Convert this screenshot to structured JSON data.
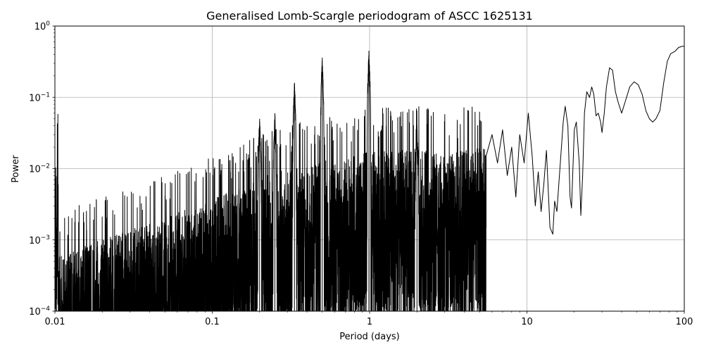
{
  "chart_data": {
    "type": "line",
    "title": "Generalised Lomb-Scargle periodogram of ASCC 1625131",
    "xlabel": "Period (days)",
    "ylabel": "Power",
    "xscale": "log",
    "yscale": "log",
    "xlim": [
      0.01,
      100
    ],
    "ylim": [
      0.0001,
      1
    ],
    "grid": true,
    "line_color": "#000000",
    "x_ticks": [
      {
        "value": 0.01,
        "label": "0.01"
      },
      {
        "value": 0.1,
        "label": "0.1"
      },
      {
        "value": 1,
        "label": "1"
      },
      {
        "value": 10,
        "label": "10"
      },
      {
        "value": 100,
        "label": "100"
      }
    ],
    "y_ticks": [
      {
        "value": 0.0001,
        "base": "10",
        "exp": "−4"
      },
      {
        "value": 0.001,
        "base": "10",
        "exp": "−3"
      },
      {
        "value": 0.01,
        "base": "10",
        "exp": "−2"
      },
      {
        "value": 0.1,
        "base": "10",
        "exp": "−1"
      },
      {
        "value": 1,
        "base": "10",
        "exp": "0"
      }
    ],
    "series": [
      {
        "peaks": [
          {
            "period": 0.2,
            "power": 0.05
          },
          {
            "period": 0.25,
            "power": 0.06
          },
          {
            "period": 0.333,
            "power": 0.16
          },
          {
            "period": 0.5,
            "power": 0.36
          },
          {
            "period": 0.99,
            "power": 0.45
          },
          {
            "period": 2.0,
            "power": 0.04
          }
        ],
        "envelope": [
          [
            0.0105,
            0.0006
          ],
          [
            0.013,
            0.0007
          ],
          [
            0.016,
            0.0009
          ],
          [
            0.02,
            0.001
          ],
          [
            0.025,
            0.0012
          ],
          [
            0.03,
            0.0014
          ],
          [
            0.04,
            0.0017
          ],
          [
            0.05,
            0.002
          ],
          [
            0.06,
            0.0024
          ],
          [
            0.07,
            0.0028
          ],
          [
            0.08,
            0.0031
          ],
          [
            0.09,
            0.0034
          ],
          [
            0.1,
            0.0037
          ],
          [
            0.12,
            0.0045
          ],
          [
            0.14,
            0.005
          ],
          [
            0.16,
            0.006
          ],
          [
            0.18,
            0.0065
          ],
          [
            0.2,
            0.0075
          ],
          [
            0.25,
            0.009
          ],
          [
            0.3,
            0.01
          ],
          [
            0.4,
            0.012
          ],
          [
            0.5,
            0.014
          ],
          [
            0.6,
            0.013
          ],
          [
            0.7,
            0.014
          ],
          [
            0.8,
            0.015
          ],
          [
            0.9,
            0.016
          ],
          [
            1.0,
            0.018
          ],
          [
            1.5,
            0.018
          ],
          [
            2.0,
            0.02
          ],
          [
            3.0,
            0.015
          ],
          [
            4.0,
            0.018
          ],
          [
            5.0,
            0.02
          ]
        ],
        "smooth": [
          [
            5.5,
            0.015
          ],
          [
            6.0,
            0.03
          ],
          [
            6.5,
            0.012
          ],
          [
            7.0,
            0.035
          ],
          [
            7.5,
            0.008
          ],
          [
            8.0,
            0.02
          ],
          [
            8.5,
            0.004
          ],
          [
            9.0,
            0.03
          ],
          [
            9.6,
            0.012
          ],
          [
            10.2,
            0.06
          ],
          [
            10.8,
            0.015
          ],
          [
            11.3,
            0.003
          ],
          [
            11.8,
            0.009
          ],
          [
            12.3,
            0.0025
          ],
          [
            12.8,
            0.006
          ],
          [
            13.3,
            0.018
          ],
          [
            14.0,
            0.0015
          ],
          [
            14.6,
            0.0012
          ],
          [
            15.0,
            0.0035
          ],
          [
            15.5,
            0.0025
          ],
          [
            16.2,
            0.01
          ],
          [
            17.0,
            0.045
          ],
          [
            17.5,
            0.075
          ],
          [
            18.2,
            0.04
          ],
          [
            18.8,
            0.004
          ],
          [
            19.2,
            0.0028
          ],
          [
            20.0,
            0.035
          ],
          [
            20.6,
            0.045
          ],
          [
            21.5,
            0.012
          ],
          [
            22.0,
            0.0022
          ],
          [
            22.6,
            0.008
          ],
          [
            23.2,
            0.06
          ],
          [
            24.0,
            0.12
          ],
          [
            25.0,
            0.1
          ],
          [
            25.8,
            0.14
          ],
          [
            26.6,
            0.11
          ],
          [
            27.5,
            0.055
          ],
          [
            28.4,
            0.06
          ],
          [
            29.4,
            0.045
          ],
          [
            30.0,
            0.032
          ],
          [
            31.0,
            0.06
          ],
          [
            32.0,
            0.14
          ],
          [
            33.5,
            0.26
          ],
          [
            35.0,
            0.24
          ],
          [
            36.5,
            0.12
          ],
          [
            38.0,
            0.085
          ],
          [
            40.0,
            0.06
          ],
          [
            42.0,
            0.085
          ],
          [
            45.0,
            0.14
          ],
          [
            48.0,
            0.165
          ],
          [
            51.0,
            0.15
          ],
          [
            54.0,
            0.11
          ],
          [
            57.0,
            0.065
          ],
          [
            60.0,
            0.05
          ],
          [
            63.0,
            0.045
          ],
          [
            66.0,
            0.05
          ],
          [
            70.0,
            0.065
          ],
          [
            74.0,
            0.16
          ],
          [
            78.0,
            0.32
          ],
          [
            82.0,
            0.41
          ],
          [
            87.0,
            0.44
          ],
          [
            92.0,
            0.5
          ],
          [
            97.0,
            0.52
          ],
          [
            100.0,
            0.52
          ]
        ]
      }
    ]
  }
}
